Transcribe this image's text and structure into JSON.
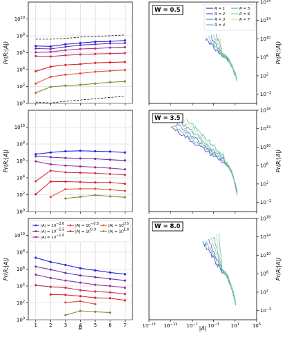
{
  "chart_data": {
    "type": "line",
    "layout": "3x2 grid",
    "shared_x": {
      "left_label": "R",
      "left_ticks": [
        "1",
        "2",
        "3",
        "4",
        "5",
        "6",
        "7"
      ],
      "right_label": "|A|",
      "right_ticks": [
        "10^-15",
        "10^-11",
        "10^-7",
        "10^-3",
        "10^1",
        "10^5"
      ]
    },
    "left_ylabel": "Pr(R;|A|)",
    "right_ylabel": "Pr(R;|A|)",
    "left_yticks": [
      "10^0",
      "10^2",
      "10^4",
      "10^6",
      "10^8",
      "10^10"
    ],
    "right_yticks": [
      "10^-2",
      "10^2",
      "10^6",
      "10^10",
      "10^14",
      "10^18"
    ],
    "left_legend": {
      "panel": 3,
      "entries": [
        {
          "label": "|A| = 10^-2.0",
          "color": "#2222dd"
        },
        {
          "label": "|A| = 10^-0.5",
          "color": "#cc3355"
        },
        {
          "label": "|A| = 10^0.5",
          "color": "#dd5533"
        },
        {
          "label": "|A| = 10^-1.5",
          "color": "#6633aa"
        },
        {
          "label": "|A| = 10^0.0",
          "color": "#dd2222"
        },
        {
          "label": "|A| = 10^1.0",
          "color": "#888833"
        },
        {
          "label": "|A| = 10^-1.0",
          "color": "#993399"
        }
      ]
    },
    "right_legend": {
      "panel": 1,
      "entries": [
        {
          "label": "R = 1",
          "color": "#3333cc"
        },
        {
          "label": "R = 5",
          "color": "#44bbaa"
        },
        {
          "label": "R = 2",
          "color": "#6655cc"
        },
        {
          "label": "R = 6",
          "color": "#88dd77"
        },
        {
          "label": "R = 3",
          "color": "#5588dd"
        },
        {
          "label": "R = 7",
          "color": "#ccee66"
        },
        {
          "label": "R = 4",
          "color": "#44bbcc"
        }
      ]
    },
    "panels": [
      {
        "W_label": "W = 0.5",
        "ylim_log10": [
          0,
          12
        ],
        "dashed_bounds": {
          "upper": [
            7.6,
            7.6,
            7.7,
            7.85,
            7.95,
            8.0,
            8.1
          ],
          "lower": [
            0.15,
            0.05,
            0.25,
            0.4,
            0.55,
            0.7,
            0.85
          ]
        },
        "series": [
          {
            "color": "#2222dd",
            "x": [
              1,
              2,
              3,
              4,
              5,
              6,
              7
            ],
            "y": [
              6.8,
              6.75,
              7.0,
              7.15,
              7.3,
              7.35,
              7.45
            ]
          },
          {
            "color": "#6633aa",
            "x": [
              1,
              2,
              3,
              4,
              5,
              6,
              7
            ],
            "y": [
              6.5,
              6.45,
              6.7,
              6.9,
              7.0,
              7.1,
              7.15
            ]
          },
          {
            "color": "#993399",
            "x": [
              1,
              2,
              3,
              4,
              5,
              6,
              7
            ],
            "y": [
              6.05,
              6.1,
              6.3,
              6.45,
              6.5,
              6.6,
              6.65
            ]
          },
          {
            "color": "#cc3355",
            "x": [
              1,
              2,
              3,
              4,
              5,
              6,
              7
            ],
            "y": [
              5.6,
              5.55,
              5.7,
              5.8,
              5.85,
              5.9,
              5.95
            ]
          },
          {
            "color": "#dd2222",
            "x": [
              1,
              2,
              3,
              4,
              5,
              6,
              7
            ],
            "y": [
              3.8,
              4.35,
              4.55,
              4.65,
              4.8,
              4.85,
              4.9
            ]
          },
          {
            "color": "#dd5533",
            "x": [
              1,
              2,
              3,
              4,
              5,
              6,
              7
            ],
            "y": [
              2.35,
              3.15,
              3.4,
              3.55,
              3.75,
              3.85,
              3.95
            ]
          },
          {
            "color": "#888833",
            "x": [
              1,
              2,
              3,
              4,
              5,
              6,
              7
            ],
            "y": [
              1.25,
              1.95,
              2.1,
              2.2,
              2.35,
              2.5,
              2.6
            ]
          }
        ],
        "right_ylim_log10": [
          -4,
          18
        ]
      },
      {
        "W_label": "W = 3.5",
        "ylim_log10": [
          0,
          12
        ],
        "series": [
          {
            "color": "#2222dd",
            "x": [
              1,
              2,
              3,
              4,
              5,
              6,
              7
            ],
            "y": [
              6.8,
              7.0,
              7.15,
              7.2,
              7.15,
              7.1,
              7.0
            ]
          },
          {
            "color": "#6633aa",
            "x": [
              1,
              2,
              3,
              4,
              5,
              6,
              7
            ],
            "y": [
              6.55,
              6.45,
              6.35,
              6.3,
              6.25,
              6.15,
              6.05
            ]
          },
          {
            "color": "#993399",
            "x": [
              1,
              2,
              3,
              4,
              5,
              6,
              7
            ],
            "y": [
              5.95,
              5.6,
              5.45,
              5.35,
              5.25,
              5.15,
              5.0
            ]
          },
          {
            "color": "#cc3355",
            "x": [
              1,
              2,
              3,
              4,
              5,
              6,
              7
            ],
            "y": [
              3.6,
              4.85,
              4.65,
              4.6,
              4.55,
              4.45,
              4.35
            ]
          },
          {
            "color": "#dd2222",
            "x": [
              1,
              2,
              3,
              4,
              5,
              6,
              7
            ],
            "y": [
              2.05,
              3.55,
              3.55,
              3.5,
              3.45,
              3.45,
              3.3
            ]
          },
          {
            "color": "#dd5533",
            "x": [
              2,
              3,
              4,
              5,
              6,
              7
            ],
            "y": [
              1.75,
              2.65,
              2.7,
              2.7,
              2.6,
              2.45
            ]
          },
          {
            "color": "#888833",
            "x": [
              3,
              4,
              5,
              6,
              7
            ],
            "y": [
              1.55,
              1.75,
              1.95,
              1.8,
              1.7
            ]
          }
        ],
        "right_ylim_log10": [
          -4,
          18
        ]
      },
      {
        "W_label": "W = 8.0",
        "ylim_log10": [
          0,
          12
        ],
        "series": [
          {
            "color": "#2222dd",
            "x": [
              1,
              2,
              3,
              4,
              5,
              6,
              7
            ],
            "y": [
              7.35,
              6.85,
              6.5,
              6.1,
              5.85,
              5.6,
              5.4
            ]
          },
          {
            "color": "#6633aa",
            "x": [
              1,
              2,
              3,
              4,
              5,
              6,
              7
            ],
            "y": [
              6.3,
              5.95,
              5.55,
              5.25,
              5.05,
              4.85,
              4.65
            ]
          },
          {
            "color": "#993399",
            "x": [
              1,
              2,
              3,
              4,
              5,
              6,
              7
            ],
            "y": [
              5.35,
              4.95,
              4.65,
              4.4,
              4.15,
              4.0,
              3.8
            ]
          },
          {
            "color": "#cc3355",
            "x": [
              1,
              2,
              3,
              4,
              5,
              6,
              7
            ],
            "y": [
              4.1,
              3.9,
              3.8,
              3.5,
              3.35,
              3.25,
              3.05
            ]
          },
          {
            "color": "#dd2222",
            "x": [
              2,
              3,
              4,
              5,
              6,
              7
            ],
            "y": [
              3.0,
              2.95,
              2.8,
              2.6,
              2.55,
              2.3
            ]
          },
          {
            "color": "#dd5533",
            "x": [
              3,
              4,
              5
            ],
            "y": [
              2.05,
              2.2,
              1.85
            ]
          },
          {
            "color": "#888833",
            "x": [
              3,
              4,
              5,
              6
            ],
            "y": [
              0.55,
              1.05,
              0.95,
              0.85
            ]
          }
        ],
        "right_ylim_log10": [
          -4,
          18
        ]
      }
    ],
    "right_xlim_log10": [
      -15,
      5
    ]
  }
}
